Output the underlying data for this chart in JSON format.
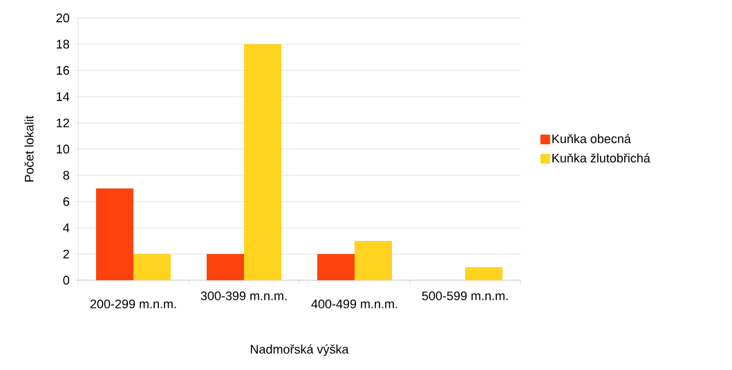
{
  "chart_data": {
    "type": "bar",
    "xlabel": "Nadmořská výška",
    "ylabel": "Počet lokalit",
    "categories": [
      "200-299 m.n.m.",
      "300-399 m.n.m.",
      "400-499 m.n.m.",
      "500-599 m.n.m."
    ],
    "series": [
      {
        "name": "Kuňka obecná",
        "color": "#ff420e",
        "values": [
          7,
          2,
          2,
          0
        ]
      },
      {
        "name": "Kuňka žlutobřichá",
        "color": "#ffd320",
        "values": [
          2,
          18,
          3,
          1
        ]
      }
    ],
    "ylim": [
      0,
      20
    ],
    "yticks": [
      0,
      2,
      4,
      6,
      8,
      10,
      12,
      14,
      16,
      18,
      20
    ],
    "grid": "y",
    "legend": "right"
  }
}
